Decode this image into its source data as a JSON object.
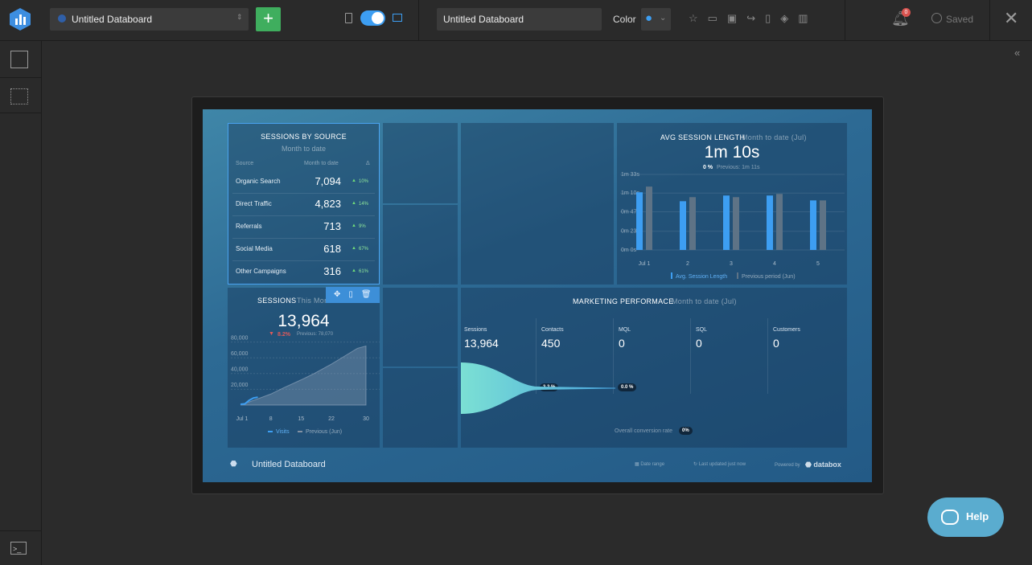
{
  "toolbar": {
    "databoard_select": "Untitled Databoard",
    "name_input": "Untitled Databoard",
    "color_label": "Color",
    "notification_count": "0",
    "status": "Saved"
  },
  "dashboard": {
    "sessions_by_source": {
      "title": "SESSIONS BY SOURCE",
      "period": "Month to date",
      "columns": [
        "Source",
        "Month to date",
        "Δ"
      ],
      "rows": [
        [
          "Organic Search",
          "7,094",
          "10%"
        ],
        [
          "Direct Traffic",
          "4,823",
          "14%"
        ],
        [
          "Referrals",
          "713",
          "9%"
        ],
        [
          "Social Media",
          "618",
          "67%"
        ],
        [
          "Other Campaigns",
          "316",
          "61%"
        ]
      ]
    },
    "avg_session_length": {
      "title": "AVG SESSION LENGTH",
      "period": "Month to date (Jul)",
      "value": "1m 10s",
      "change": "0 %",
      "previous": "Previous: 1m 11s",
      "chart": {
        "type": "bar",
        "categories": [
          "Jul 1",
          "2",
          "3",
          "4",
          "5"
        ],
        "series": [
          {
            "name": "Avg. Session Length",
            "color": "#3d9ef2",
            "values": [
              71,
              60,
              67,
              67,
              61
            ]
          },
          {
            "name": "Previous period (Jun)",
            "color": "#5e7386",
            "values": [
              78,
              65,
              65,
              69,
              61
            ]
          }
        ],
        "ylim": [
          0,
          93
        ],
        "yticks": [
          {
            "value": 0,
            "label": "0m 0s"
          },
          {
            "value": 23,
            "label": "0m 23s"
          },
          {
            "value": 47,
            "label": "0m 47s"
          },
          {
            "value": 70,
            "label": "1m 10s"
          },
          {
            "value": 93,
            "label": "1m 33s"
          }
        ]
      }
    },
    "sessions": {
      "title": "SESSIONS",
      "period": "This Month",
      "value": "13,964",
      "change": "8.2%",
      "previous": "Previous: 78,070",
      "chart": {
        "type": "line",
        "series": [
          {
            "name": "Visits",
            "color": "#3d9ef2",
            "x": [
              1,
              2,
              3,
              4,
              5
            ],
            "values": [
              1000,
              1500,
              6000,
              9000,
              10000
            ]
          },
          {
            "name": "Previous (Jun)",
            "color": "#8391a3",
            "x": [
              1,
              2,
              5,
              8,
              11,
              15,
              18,
              22,
              25,
              28,
              30
            ],
            "values": [
              0,
              2000,
              8000,
              14000,
              22000,
              32000,
              40000,
              52000,
              62000,
              72000,
              75000
            ]
          }
        ],
        "xlim": [
          1,
          30
        ],
        "xticks": [
          {
            "value": 1,
            "label": "Jul 1"
          },
          8,
          15,
          22,
          30
        ],
        "ylim": [
          0,
          80000
        ],
        "yticks": [
          {
            "value": 20000,
            "label": "20,000"
          },
          {
            "value": 40000,
            "label": "40,000"
          },
          {
            "value": 60000,
            "label": "60,000"
          },
          {
            "value": 80000,
            "label": "80,000"
          }
        ]
      }
    },
    "marketing_performance": {
      "title": "MARKETING PERFORMACE",
      "period": "Month to date (Jul)",
      "stages": [
        {
          "label": "Sessions",
          "value": "13,964"
        },
        {
          "label": "Contacts",
          "value": "450"
        },
        {
          "label": "MQL",
          "value": "0"
        },
        {
          "label": "SQL",
          "value": "0"
        },
        {
          "label": "Customers",
          "value": "0"
        }
      ],
      "conversions": [
        "3.2 %",
        "0.0 %"
      ],
      "overall_label": "Overall conversion rate",
      "overall": "0%"
    },
    "footer": {
      "name": "Untitled Databoard",
      "date_range": "Date range",
      "last_updated": "Last updated just now",
      "powered_by": "Powered by",
      "brand": "databox"
    }
  },
  "help": "Help"
}
